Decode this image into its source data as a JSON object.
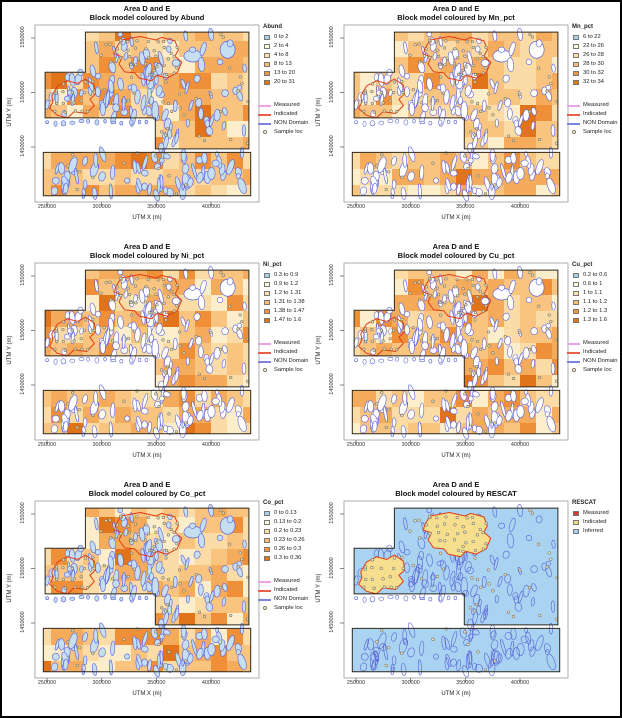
{
  "figure": {
    "title_line1": "Area D and E",
    "x_label": "UTM X (m)",
    "y_label": "UTM Y (m)",
    "x_ticks": [
      "250000",
      "300000",
      "350000",
      "400000"
    ],
    "y_ticks": [
      "1450000",
      "1500000",
      "1550000"
    ],
    "map_colors": {
      "base": "#f7bb74",
      "block_palette": [
        "#fdeecb",
        "#fbdca6",
        "#f8c480",
        "#f4ab5c",
        "#ef9038",
        "#e1731a"
      ],
      "contour": "#5a62d8",
      "indicated_outline": "#e23c14",
      "region_outline": "#2e2a1e",
      "rescat_background": "#a9d3f0",
      "rescat_indicated_fill": "#f5df8e",
      "sample_stroke": "#82795a",
      "lake_fill": "#c6def2"
    }
  },
  "line_legend": {
    "items": [
      {
        "label": "Measured",
        "color": "#e7a3e3"
      },
      {
        "label": "Indicated",
        "color": "#e8604c"
      },
      {
        "label": "NON Domain",
        "color": "#7b83dd"
      },
      {
        "label": "Sample loc",
        "symbol": "circle"
      }
    ]
  },
  "panels": [
    {
      "key": "abund",
      "title_line2": "Block model coloured by Abund",
      "legend_title": "Abund",
      "legend_items": [
        {
          "label": "0 to 2",
          "color": "#a9d2e8"
        },
        {
          "label": "2 to 4",
          "color": "#fffbdf"
        },
        {
          "label": "4 to 8",
          "color": "#fce3ae"
        },
        {
          "label": "8 to 13",
          "color": "#f8bf74"
        },
        {
          "label": "13 to 20",
          "color": "#f0973f"
        },
        {
          "label": "20 to 31",
          "color": "#e2760f"
        }
      ],
      "show_line_legend": true,
      "style": "orange",
      "blob_fill": "#c6def2"
    },
    {
      "key": "mn-pct",
      "title_line2": "Block model coloured by Mn_pct",
      "legend_title": "Mn_pct",
      "legend_items": [
        {
          "label": "6 to 22",
          "color": "#a9d2e8"
        },
        {
          "label": "22 to 26",
          "color": "#fffbdf"
        },
        {
          "label": "26 to 28",
          "color": "#fce3ae"
        },
        {
          "label": "28 to 30",
          "color": "#f8bf74"
        },
        {
          "label": "30 to 32",
          "color": "#f0973f"
        },
        {
          "label": "32 to 34",
          "color": "#e2760f"
        }
      ],
      "show_line_legend": true,
      "style": "orange",
      "blob_fill": "#ffffff"
    },
    {
      "key": "ni-pct",
      "title_line2": "Block model coloured by Ni_pct",
      "legend_title": "Ni_pct",
      "legend_items": [
        {
          "label": "0.3 to 0.9",
          "color": "#a9d2e8"
        },
        {
          "label": "0.9 to 1.2",
          "color": "#fffbdf"
        },
        {
          "label": "1.2 to 1.31",
          "color": "#fce3ae"
        },
        {
          "label": "1.31 to 1.38",
          "color": "#f8bf74"
        },
        {
          "label": "1.38 to 1.47",
          "color": "#f0973f"
        },
        {
          "label": "1.47 to 1.6",
          "color": "#e2760f"
        }
      ],
      "show_line_legend": true,
      "style": "orange",
      "blob_fill": "#ffffff"
    },
    {
      "key": "cu-pct",
      "title_line2": "Block model coloured by Cu_pct",
      "legend_title": "Cu_pct",
      "legend_items": [
        {
          "label": "0.2 to 0.6",
          "color": "#a9d2e8"
        },
        {
          "label": "0.6 to 1",
          "color": "#fffbdf"
        },
        {
          "label": "1 to 1.1",
          "color": "#fce3ae"
        },
        {
          "label": "1.1 to 1.2",
          "color": "#f8bf74"
        },
        {
          "label": "1.2 to 1.3",
          "color": "#f0973f"
        },
        {
          "label": "1.3 to 1.6",
          "color": "#e2760f"
        }
      ],
      "show_line_legend": true,
      "style": "orange",
      "blob_fill": "#ffffff"
    },
    {
      "key": "co-pct",
      "title_line2": "Block model coloured by Co_pct",
      "legend_title": "Co_pct",
      "legend_items": [
        {
          "label": "0 to 0.13",
          "color": "#a9d2e8"
        },
        {
          "label": "0.13 to 0.2",
          "color": "#fffbdf"
        },
        {
          "label": "0.2 to 0.23",
          "color": "#fce3ae"
        },
        {
          "label": "0.23 to 0.26",
          "color": "#f8bf74"
        },
        {
          "label": "0.26 to 0.3",
          "color": "#f0973f"
        },
        {
          "label": "0.3 to 0.36",
          "color": "#e2760f"
        }
      ],
      "show_line_legend": true,
      "style": "orange",
      "blob_fill": "#c6def2"
    },
    {
      "key": "rescat",
      "title_line2": "Block model coloured by RESCAT",
      "legend_title": "RESCAT",
      "legend_items": [
        {
          "label": "Measured",
          "color": "#d8392b"
        },
        {
          "label": "Indicated",
          "color": "#f2dd84"
        },
        {
          "label": "Inferred",
          "color": "#a9d3f0"
        }
      ],
      "show_line_legend": false,
      "style": "rescat",
      "blob_fill": "none"
    }
  ],
  "chart_data": [
    {
      "type": "heatmap",
      "variable": "Abund",
      "title": "Area D and E",
      "subtitle": "Block model coloured by Abund",
      "xlabel": "UTM X (m)",
      "ylabel": "UTM Y (m)",
      "x_ticks": [
        250000,
        300000,
        350000,
        400000
      ],
      "y_ticks": [
        1450000,
        1500000,
        1550000
      ],
      "xlim": [
        239000,
        444000
      ],
      "ylim": [
        1404000,
        1558000
      ],
      "legend_position": "right",
      "grid": false,
      "classes": [
        "0 to 2",
        "2 to 4",
        "4 to 8",
        "8 to 13",
        "13 to 20",
        "20 to 31"
      ],
      "class_colors": [
        "#a9d2e8",
        "#fffbdf",
        "#fce3ae",
        "#f8bf74",
        "#f0973f",
        "#e2760f"
      ],
      "overlays": [
        "Measured",
        "Indicated",
        "NON Domain",
        "Sample loc"
      ]
    },
    {
      "type": "heatmap",
      "variable": "Mn_pct",
      "title": "Area D and E",
      "subtitle": "Block model coloured by Mn_pct",
      "xlabel": "UTM X (m)",
      "ylabel": "UTM Y (m)",
      "x_ticks": [
        250000,
        300000,
        350000,
        400000
      ],
      "y_ticks": [
        1450000,
        1500000,
        1550000
      ],
      "xlim": [
        239000,
        444000
      ],
      "ylim": [
        1404000,
        1558000
      ],
      "legend_position": "right",
      "grid": false,
      "classes": [
        "6 to 22",
        "22 to 26",
        "26 to 28",
        "28 to 30",
        "30 to 32",
        "32 to 34"
      ],
      "class_colors": [
        "#a9d2e8",
        "#fffbdf",
        "#fce3ae",
        "#f8bf74",
        "#f0973f",
        "#e2760f"
      ],
      "overlays": [
        "Measured",
        "Indicated",
        "NON Domain",
        "Sample loc"
      ]
    },
    {
      "type": "heatmap",
      "variable": "Ni_pct",
      "title": "Area D and E",
      "subtitle": "Block model coloured by Ni_pct",
      "xlabel": "UTM X (m)",
      "ylabel": "UTM Y (m)",
      "x_ticks": [
        250000,
        300000,
        350000,
        400000
      ],
      "y_ticks": [
        1450000,
        1500000,
        1550000
      ],
      "xlim": [
        239000,
        444000
      ],
      "ylim": [
        1404000,
        1558000
      ],
      "legend_position": "right",
      "grid": false,
      "classes": [
        "0.3 to 0.9",
        "0.9 to 1.2",
        "1.2 to 1.31",
        "1.31 to 1.38",
        "1.38 to 1.47",
        "1.47 to 1.6"
      ],
      "class_colors": [
        "#a9d2e8",
        "#fffbdf",
        "#fce3ae",
        "#f8bf74",
        "#f0973f",
        "#e2760f"
      ],
      "overlays": [
        "Measured",
        "Indicated",
        "NON Domain",
        "Sample loc"
      ]
    },
    {
      "type": "heatmap",
      "variable": "Cu_pct",
      "title": "Area D and E",
      "subtitle": "Block model coloured by Cu_pct",
      "xlabel": "UTM X (m)",
      "ylabel": "UTM Y (m)",
      "x_ticks": [
        250000,
        300000,
        350000,
        400000
      ],
      "y_ticks": [
        1450000,
        1500000,
        1550000
      ],
      "xlim": [
        239000,
        444000
      ],
      "ylim": [
        1404000,
        1558000
      ],
      "legend_position": "right",
      "grid": false,
      "classes": [
        "0.2 to 0.6",
        "0.6 to 1",
        "1 to 1.1",
        "1.1 to 1.2",
        "1.2 to 1.3",
        "1.3 to 1.6"
      ],
      "class_colors": [
        "#a9d2e8",
        "#fffbdf",
        "#fce3ae",
        "#f8bf74",
        "#f0973f",
        "#e2760f"
      ],
      "overlays": [
        "Measured",
        "Indicated",
        "NON Domain",
        "Sample loc"
      ]
    },
    {
      "type": "heatmap",
      "variable": "Co_pct",
      "title": "Area D and E",
      "subtitle": "Block model coloured by Co_pct",
      "xlabel": "UTM X (m)",
      "ylabel": "UTM Y (m)",
      "x_ticks": [
        250000,
        300000,
        350000,
        400000
      ],
      "y_ticks": [
        1450000,
        1500000,
        1550000
      ],
      "xlim": [
        239000,
        444000
      ],
      "ylim": [
        1404000,
        1558000
      ],
      "legend_position": "right",
      "grid": false,
      "classes": [
        "0 to 0.13",
        "0.13 to 0.2",
        "0.2 to 0.23",
        "0.23 to 0.26",
        "0.26 to 0.3",
        "0.3 to 0.36"
      ],
      "class_colors": [
        "#a9d2e8",
        "#fffbdf",
        "#fce3ae",
        "#f8bf74",
        "#f0973f",
        "#e2760f"
      ],
      "overlays": [
        "Measured",
        "Indicated",
        "NON Domain",
        "Sample loc"
      ]
    },
    {
      "type": "heatmap",
      "variable": "RESCAT",
      "title": "Area D and E",
      "subtitle": "Block model coloured by RESCAT",
      "xlabel": "UTM X (m)",
      "ylabel": "UTM Y (m)",
      "x_ticks": [
        250000,
        300000,
        350000,
        400000
      ],
      "y_ticks": [
        1450000,
        1500000,
        1550000
      ],
      "xlim": [
        239000,
        444000
      ],
      "ylim": [
        1404000,
        1558000
      ],
      "legend_position": "right",
      "grid": false,
      "classes": [
        "Measured",
        "Indicated",
        "Inferred"
      ],
      "class_colors": [
        "#d8392b",
        "#f2dd84",
        "#a9d3f0"
      ],
      "overlays": [
        "Sample loc"
      ]
    }
  ]
}
